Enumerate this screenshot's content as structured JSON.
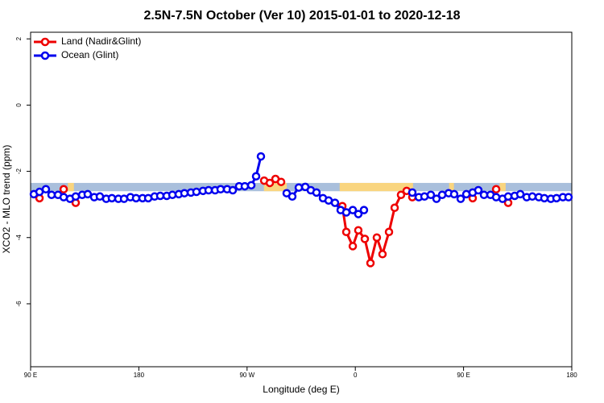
{
  "chart_data": {
    "type": "line",
    "title": "2.5N-7.5N October (Ver 10)   2015-01-01 to 2020-12-18",
    "x_label": "Longitude (deg E)",
    "y_label": "XCO2 - MLO trend (ppm)",
    "xlim": [
      90,
      540
    ],
    "xticks": [
      {
        "value": 90,
        "label": "90 E"
      },
      {
        "value": 180,
        "label": "180"
      },
      {
        "value": 270,
        "label": "90 W"
      },
      {
        "value": 360,
        "label": "0"
      },
      {
        "value": 450,
        "label": "90 E"
      },
      {
        "value": 540,
        "label": "180"
      }
    ],
    "ylim": [
      -7.9,
      2.2
    ],
    "yticks": [
      2,
      0,
      -2,
      -4,
      -6
    ],
    "legend": "top-left",
    "band": {
      "bottom": -2.6,
      "top": -2.35,
      "color": "#a9bfdc"
    },
    "land_shading": {
      "color": "#f9d57f",
      "ranges": [
        [
          121,
          126
        ],
        [
          284,
          303
        ],
        [
          347,
          408
        ],
        [
          438,
          442
        ],
        [
          480,
          485
        ]
      ]
    },
    "series": [
      {
        "name": "Land (Nadir&Glint)",
        "color": "#ee0000",
        "x": [
          97.4,
          null,
          117.5,
          null,
          127.5,
          null,
          284.2,
          288.9,
          293.6,
          298.3,
          null,
          349.2,
          352.5,
          357.9,
          362.5,
          367.9,
          372.6,
          377.9,
          382.6,
          388.0,
          392.7,
          398.0,
          402.7,
          407.4,
          null,
          457.6,
          null,
          477.1,
          null,
          487.1
        ],
        "values": [
          -2.81,
          null,
          -2.54,
          null,
          -2.95,
          null,
          -2.28,
          -2.35,
          -2.23,
          -2.32,
          null,
          -3.05,
          -3.83,
          -4.26,
          -3.78,
          -4.04,
          -4.77,
          -4.0,
          -4.5,
          -3.83,
          -3.1,
          -2.71,
          -2.59,
          -2.78,
          null,
          -2.81,
          null,
          -2.54,
          null,
          -2.95
        ]
      },
      {
        "name": "Ocean (Glint)",
        "color": "#0000ee",
        "x": [
          92.7,
          97.4,
          102.7,
          107.4,
          112.8,
          117.5,
          122.8,
          127.5,
          132.9,
          137.5,
          142.9,
          147.6,
          152.9,
          157.6,
          163.0,
          167.7,
          173.0,
          177.7,
          183.1,
          187.8,
          193.1,
          197.8,
          203.2,
          207.9,
          213.2,
          217.9,
          223.3,
          227.9,
          233.3,
          238.0,
          243.4,
          248.0,
          253.4,
          258.1,
          263.4,
          268.1,
          273.5,
          277.5,
          281.5,
          null,
          302.9,
          307.6,
          313.0,
          318.4,
          323.0,
          327.7,
          333.1,
          337.8,
          343.1,
          347.8,
          352.5,
          357.9,
          362.5,
          367.2,
          null,
          407.4,
          412.8,
          417.5,
          422.8,
          427.5,
          432.2,
          437.6,
          442.2,
          447.6,
          452.3,
          457.6,
          462.3,
          467.0,
          472.4,
          477.1,
          482.4,
          487.1,
          492.5,
          497.2,
          502.5,
          507.2,
          512.6,
          517.2,
          522.6,
          527.3,
          532.6,
          537.3
        ],
        "values": [
          -2.69,
          -2.62,
          -2.54,
          -2.71,
          -2.71,
          -2.78,
          -2.83,
          -2.76,
          -2.71,
          -2.69,
          -2.78,
          -2.76,
          -2.83,
          -2.81,
          -2.83,
          -2.83,
          -2.78,
          -2.81,
          -2.81,
          -2.81,
          -2.76,
          -2.74,
          -2.74,
          -2.71,
          -2.69,
          -2.66,
          -2.64,
          -2.62,
          -2.59,
          -2.57,
          -2.57,
          -2.54,
          -2.54,
          -2.57,
          -2.45,
          -2.45,
          -2.42,
          -2.15,
          -1.55,
          null,
          -2.66,
          -2.76,
          -2.49,
          -2.47,
          -2.57,
          -2.64,
          -2.81,
          -2.88,
          -2.95,
          -3.17,
          -3.24,
          -3.17,
          -3.29,
          -3.17,
          null,
          -2.64,
          -2.78,
          -2.76,
          -2.71,
          -2.83,
          -2.71,
          -2.66,
          -2.69,
          -2.83,
          -2.69,
          -2.64,
          -2.57,
          -2.71,
          -2.71,
          -2.78,
          -2.83,
          -2.76,
          -2.74,
          -2.69,
          -2.78,
          -2.76,
          -2.78,
          -2.81,
          -2.83,
          -2.81,
          -2.78,
          -2.78
        ]
      }
    ]
  }
}
